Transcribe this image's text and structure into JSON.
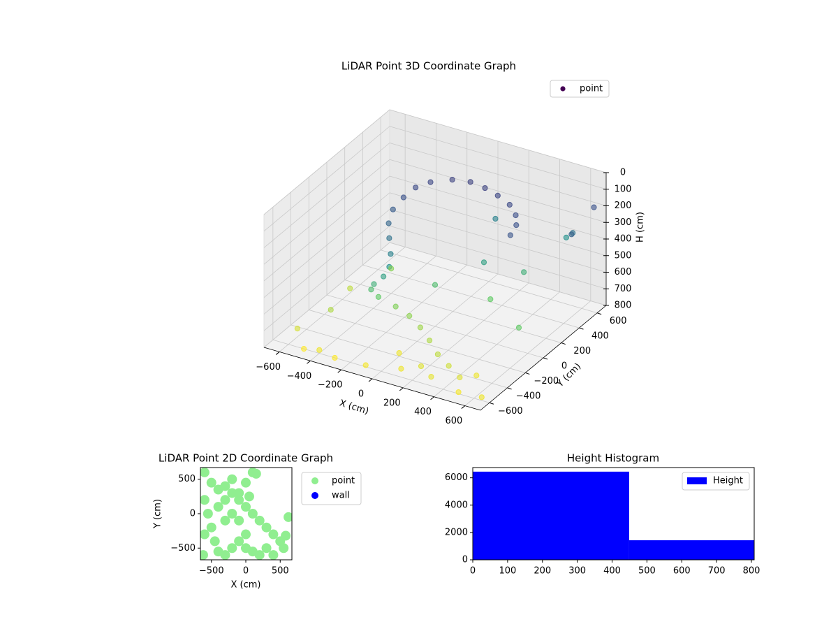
{
  "chart_data": [
    {
      "type": "scatter3d",
      "title": "LiDAR Point 3D Coordinate Graph",
      "x_label": "X (cm)",
      "y_label": "Y (cm)",
      "z_label": "H (cm)",
      "xlim": [
        -700,
        700
      ],
      "ylim": [
        -700,
        700
      ],
      "zlim": [
        0,
        800
      ],
      "z_inverted": true,
      "colormap": "viridis",
      "legend": "upper right",
      "xticks": [
        {
          "value": -600,
          "label": "−600"
        },
        {
          "value": -400,
          "label": "−400"
        },
        {
          "value": -200,
          "label": "−200"
        },
        0,
        200,
        400,
        600
      ],
      "yticks": [
        {
          "value": -600,
          "label": "−600"
        },
        {
          "value": -400,
          "label": "−400"
        },
        {
          "value": -200,
          "label": "−200"
        },
        0,
        200,
        400,
        600
      ],
      "zticks": [
        0,
        100,
        200,
        300,
        400,
        500,
        600,
        700,
        800
      ],
      "series": [
        {
          "name": "point",
          "color": "#440154",
          "x": [
            -300,
            -250,
            -150,
            -50,
            50,
            150,
            250,
            330,
            380,
            400,
            -320,
            -330,
            -300,
            -250,
            -200,
            -180,
            -200,
            -250,
            -280,
            -250,
            -150,
            -50,
            50,
            150,
            250,
            350,
            450,
            200,
            100,
            300,
            500,
            0,
            600,
            650,
            500,
            -500,
            -600,
            -400,
            -500,
            600,
            400,
            200,
            -400,
            -550,
            650,
            0,
            100,
            500,
            -300,
            300,
            -100,
            650
          ],
          "y": [
            300,
            380,
            450,
            480,
            470,
            440,
            400,
            330,
            250,
            150,
            200,
            100,
            0,
            -80,
            -150,
            -200,
            -230,
            -250,
            -230,
            -200,
            -180,
            -200,
            -250,
            -320,
            -400,
            -450,
            -500,
            -500,
            -550,
            -560,
            -400,
            -400,
            500,
            400,
            600,
            -300,
            -500,
            -600,
            -600,
            -100,
            300,
            200,
            200,
            0,
            650,
            0,
            500,
            -600,
            -600,
            100,
            -600,
            -600
          ],
          "z": [
            180,
            170,
            160,
            160,
            165,
            170,
            180,
            190,
            200,
            210,
            200,
            230,
            260,
            300,
            350,
            400,
            450,
            500,
            550,
            600,
            640,
            660,
            680,
            700,
            720,
            740,
            760,
            760,
            780,
            770,
            780,
            780,
            300,
            250,
            400,
            700,
            750,
            780,
            800,
            600,
            500,
            450,
            650,
            720,
            200,
            550,
            350,
            790,
            800,
            600,
            790,
            780
          ]
        }
      ]
    },
    {
      "type": "scatter",
      "title": "LiDAR Point 2D Coordinate Graph",
      "x_label": "X (cm)",
      "y_label": "Y (cm)",
      "xlim": [
        -660,
        670
      ],
      "ylim": [
        -670,
        670
      ],
      "legend": "outside right",
      "xticks": [
        {
          "value": -500,
          "label": "−500"
        },
        0,
        500
      ],
      "yticks": [
        {
          "value": -500,
          "label": "−500"
        },
        0,
        500
      ],
      "series": [
        {
          "name": "point",
          "color": "#90ee90",
          "x": [
            -600,
            -500,
            -400,
            -300,
            -200,
            -100,
            0,
            100,
            200,
            300,
            400,
            500,
            550,
            -600,
            -550,
            -500,
            -450,
            -400,
            -300,
            -200,
            -100,
            0,
            100,
            200,
            -300,
            -200,
            -100,
            0,
            -400,
            -200,
            0,
            100,
            150,
            620,
            580,
            -620,
            300,
            -100,
            50,
            -600,
            -300,
            400
          ],
          "values": [
            600,
            450,
            350,
            400,
            300,
            200,
            100,
            0,
            -100,
            -200,
            -300,
            -400,
            -500,
            200,
            0,
            -200,
            -400,
            -550,
            -600,
            -500,
            -400,
            -300,
            -550,
            -600,
            -100,
            0,
            -100,
            -500,
            100,
            500,
            450,
            600,
            580,
            -50,
            -320,
            -600,
            -500,
            300,
            250,
            -300,
            200,
            -600
          ]
        },
        {
          "name": "wall",
          "color": "#0000ff",
          "x": [],
          "values": []
        }
      ]
    },
    {
      "type": "histogram",
      "title": "Height Histogram",
      "legend": "upper right",
      "bins": [
        0,
        449,
        808
      ],
      "series": [
        {
          "name": "Height",
          "color": "#0000ff",
          "values": [
            6450,
            1430
          ]
        }
      ],
      "xlim": [
        0,
        808
      ],
      "ylim": [
        0,
        6750
      ],
      "xticks": [
        0,
        100,
        200,
        300,
        400,
        500,
        600,
        700,
        800
      ],
      "yticks": [
        0,
        2000,
        4000,
        6000
      ]
    }
  ]
}
